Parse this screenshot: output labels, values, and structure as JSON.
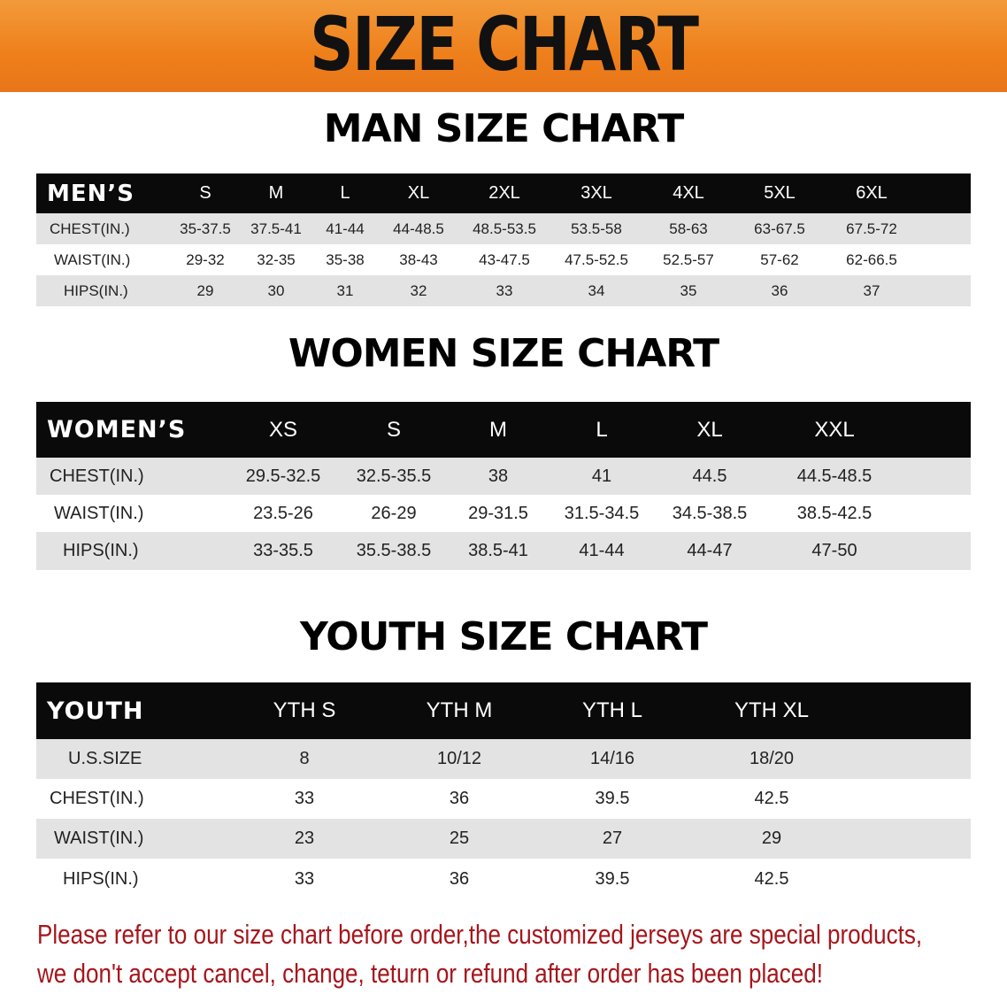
{
  "banner": {
    "title": "SIZE CHART",
    "color": "#ee7f1a"
  },
  "men": {
    "title": "MAN SIZE CHART",
    "header": "MEN’S",
    "sizes": [
      "S",
      "M",
      "L",
      "XL",
      "2XL",
      "3XL",
      "4XL",
      "5XL",
      "6XL"
    ],
    "rows": [
      {
        "label": "CHEST(IN.)",
        "values": [
          "35-37.5",
          "37.5-41",
          "41-44",
          "44-48.5",
          "48.5-53.5",
          "53.5-58",
          "58-63",
          "63-67.5",
          "67.5-72"
        ]
      },
      {
        "label": "WAIST(IN.)",
        "values": [
          "29-32",
          "32-35",
          "35-38",
          "38-43",
          "43-47.5",
          "47.5-52.5",
          "52.5-57",
          "57-62",
          "62-66.5"
        ]
      },
      {
        "label": "HIPS(IN.)",
        "values": [
          "29",
          "30",
          "31",
          "32",
          "33",
          "34",
          "35",
          "36",
          "37"
        ]
      }
    ]
  },
  "women": {
    "title": "WOMEN SIZE CHART",
    "header": "WOMEN’S",
    "sizes": [
      "XS",
      "S",
      "M",
      "L",
      "XL",
      "XXL"
    ],
    "rows": [
      {
        "label": "CHEST(IN.)",
        "values": [
          "29.5-32.5",
          "32.5-35.5",
          "38",
          "41",
          "44.5",
          "44.5-48.5"
        ]
      },
      {
        "label": "WAIST(IN.)",
        "values": [
          "23.5-26",
          "26-29",
          "29-31.5",
          "31.5-34.5",
          "34.5-38.5",
          "38.5-42.5"
        ]
      },
      {
        "label": "HIPS(IN.)",
        "values": [
          "33-35.5",
          "35.5-38.5",
          "38.5-41",
          "41-44",
          "44-47",
          "47-50"
        ]
      }
    ]
  },
  "youth": {
    "title": "YOUTH SIZE CHART",
    "header": "YOUTH",
    "sizes": [
      "YTH S",
      "YTH M",
      "YTH L",
      "YTH XL"
    ],
    "rows": [
      {
        "label": "U.S.SIZE",
        "values": [
          "8",
          "10/12",
          "14/16",
          "18/20"
        ]
      },
      {
        "label": "CHEST(IN.)",
        "values": [
          "33",
          "36",
          "39.5",
          "42.5"
        ]
      },
      {
        "label": "WAIST(IN.)",
        "values": [
          "23",
          "25",
          "27",
          "29"
        ]
      },
      {
        "label": "HIPS(IN.)",
        "values": [
          "33",
          "36",
          "39.5",
          "42.5"
        ]
      }
    ]
  },
  "notice": {
    "line1": "Please refer to our size chart before order,the customized jerseys are special products,",
    "line2": "we don't accept cancel, change, teturn or refund after order has been placed!",
    "color": "#a5161c"
  }
}
